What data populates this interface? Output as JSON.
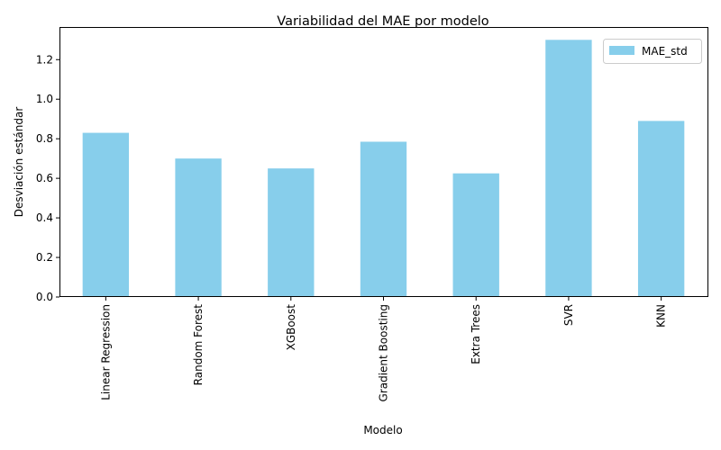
{
  "chart_data": {
    "type": "bar",
    "title": "Variabilidad del MAE por modelo",
    "xlabel": "Modelo",
    "ylabel": "Desviación estándar",
    "categories": [
      "Linear Regression",
      "Random Forest",
      "XGBoost",
      "Gradient Boosting",
      "Extra Trees",
      "SVR",
      "KNN"
    ],
    "series": [
      {
        "name": "MAE_std",
        "values": [
          0.83,
          0.7,
          0.65,
          0.785,
          0.625,
          1.3,
          0.89
        ],
        "color": "#87ceeb"
      }
    ],
    "ylim": [
      0,
      1.365
    ],
    "yticks": [
      0.0,
      0.2,
      0.4,
      0.6,
      0.8,
      1.0,
      1.2
    ],
    "ytick_labels": [
      "0.0",
      "0.2",
      "0.4",
      "0.6",
      "0.8",
      "1.0",
      "1.2"
    ],
    "grid": false,
    "legend_position": "top-right"
  }
}
